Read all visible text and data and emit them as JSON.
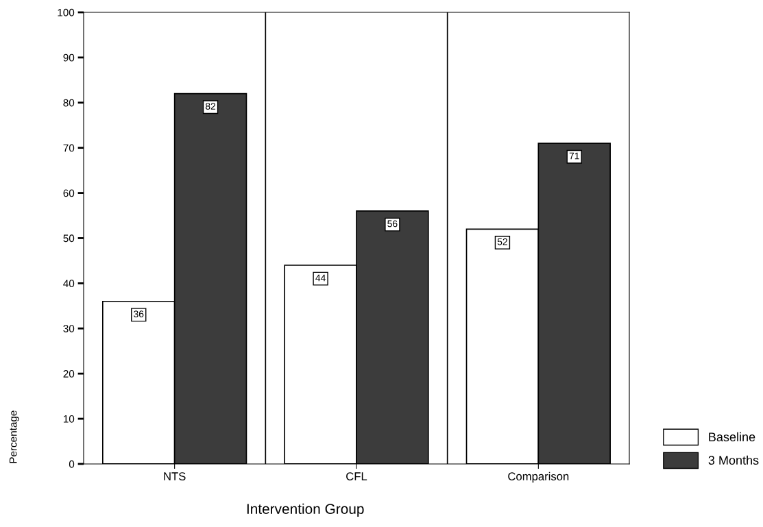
{
  "chart_data": {
    "type": "bar",
    "xlabel": "Intervention Group",
    "ylabel": "Percentage",
    "categories": [
      "NTS",
      "CFL",
      "Comparison"
    ],
    "series": [
      {
        "name": "Baseline",
        "color": "#ffffff",
        "values": [
          36,
          44,
          52
        ]
      },
      {
        "name": "3 Months",
        "color": "#3c3c3c",
        "values": [
          82,
          56,
          71
        ]
      }
    ],
    "ylim": [
      0,
      100
    ],
    "yticks": [
      0,
      10,
      20,
      30,
      40,
      50,
      60,
      70,
      80,
      90,
      100
    ],
    "data_labels": true,
    "grid": false,
    "legend": "bottom right"
  }
}
